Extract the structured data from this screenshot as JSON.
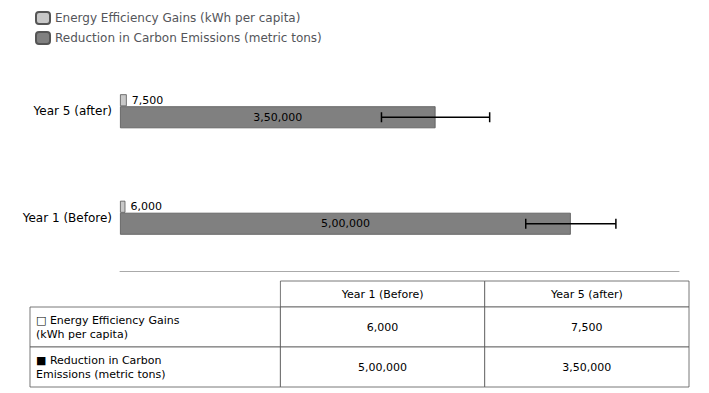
{
  "chart_data": {
    "type": "bar",
    "orientation": "horizontal",
    "categories": [
      "Year 1 (Before)",
      "Year 5 (after)"
    ],
    "series": [
      {
        "name": "Energy Efficiency Gains (kWh per capita)",
        "color": "#c8c8c8",
        "values": [
          6000,
          7500
        ],
        "value_labels": [
          "6,000",
          "7,500"
        ]
      },
      {
        "name": "Reduction in Carbon Emissions (metric tons)",
        "color": "#808080",
        "values": [
          500000,
          350000
        ],
        "value_labels": [
          "5,00,000",
          "3,50,000"
        ],
        "errors": [
          50000,
          60000
        ]
      }
    ],
    "xlim": [
      0,
      620000
    ],
    "grid": false,
    "legend": "upper left",
    "data_labels": true,
    "tick_labels": "y",
    "table": {
      "columns": [
        "Year 1 (Before)",
        "Year 5 (after)"
      ],
      "rows": [
        {
          "label": "□ Energy Efficiency Gains\n(kWh per capita)",
          "values": [
            6000,
            7500
          ],
          "value_labels": [
            "6,000",
            "7,500"
          ]
        },
        {
          "label": "■ Reduction in Carbon\nEmissions (metric tons)",
          "values": [
            500000,
            350000
          ],
          "value_labels": [
            "5,00,000",
            "3,50,000"
          ]
        }
      ]
    }
  }
}
